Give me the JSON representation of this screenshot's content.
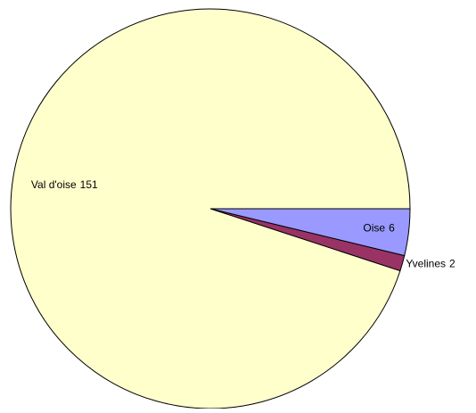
{
  "chart_data": {
    "type": "pie",
    "categories": [
      "Oise",
      "Yvelines",
      "Val d'oise"
    ],
    "values": [
      6,
      2,
      151
    ],
    "colors": [
      "#9999ff",
      "#993366",
      "#ffffcc"
    ]
  }
}
